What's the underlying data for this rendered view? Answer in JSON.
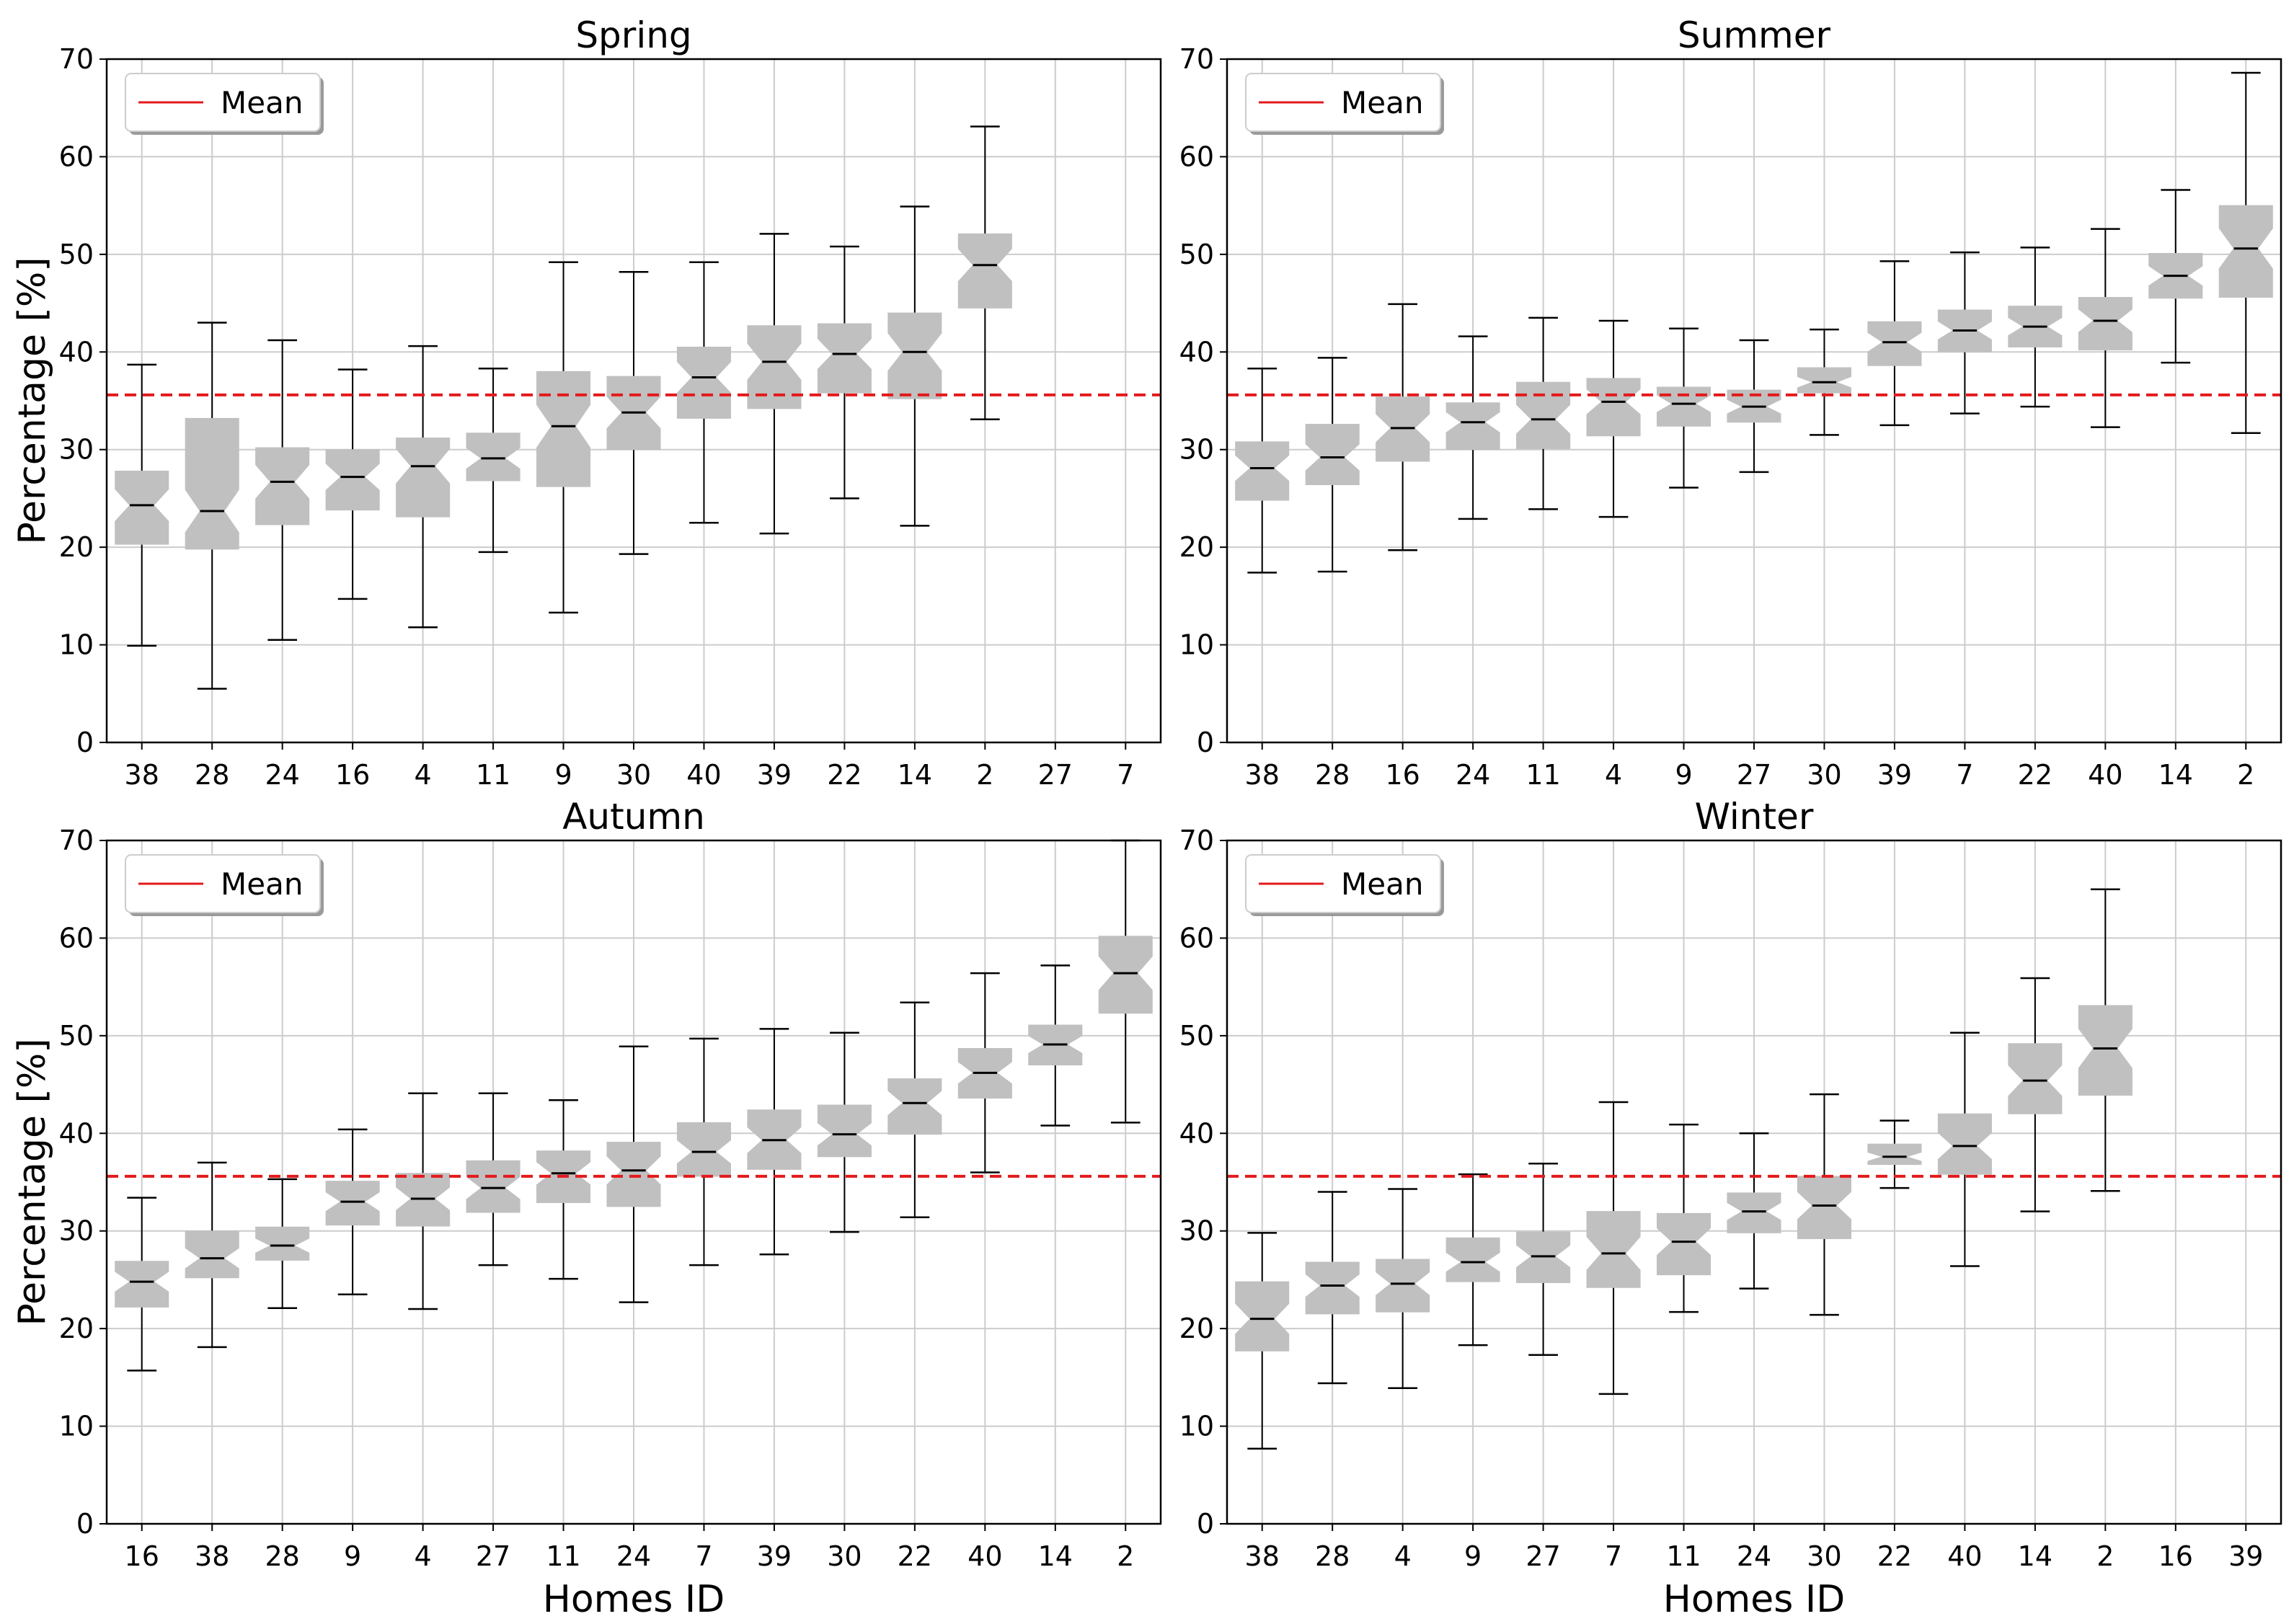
{
  "figure": {
    "mean_legend_label": "Mean",
    "ylabel": "Percentage [%]",
    "xlabel": "Homes ID",
    "colors": {
      "box": "#c0c0c0",
      "mean_line": "#e31a1c",
      "whisker": "#000000",
      "grid": "#cccccc"
    }
  },
  "chart_data": [
    {
      "type": "box",
      "title": "Spring",
      "ylim": [
        0,
        70
      ],
      "yticks": [
        0,
        10,
        20,
        30,
        40,
        50,
        60,
        70
      ],
      "mean": 35.6,
      "ylabel": "Percentage [%]",
      "xlabel": "",
      "categories": [
        "38",
        "28",
        "24",
        "16",
        "4",
        "11",
        "9",
        "30",
        "40",
        "39",
        "22",
        "14",
        "2",
        "27",
        "7"
      ],
      "boxes": [
        {
          "min": 9.9,
          "q1": 20.3,
          "median": 24.3,
          "q3": 27.8,
          "max": 38.7
        },
        {
          "min": 5.5,
          "q1": 19.8,
          "median": 23.7,
          "q3": 33.2,
          "max": 43.0
        },
        {
          "min": 10.5,
          "q1": 22.3,
          "median": 26.7,
          "q3": 30.2,
          "max": 41.2
        },
        {
          "min": 14.7,
          "q1": 23.8,
          "median": 27.2,
          "q3": 30.0,
          "max": 38.2
        },
        {
          "min": 11.8,
          "q1": 23.1,
          "median": 28.3,
          "q3": 31.2,
          "max": 40.6
        },
        {
          "min": 19.5,
          "q1": 26.8,
          "median": 29.1,
          "q3": 31.7,
          "max": 38.3
        },
        {
          "min": 13.3,
          "q1": 26.2,
          "median": 32.4,
          "q3": 38.0,
          "max": 49.2
        },
        {
          "min": 19.3,
          "q1": 30.0,
          "median": 33.8,
          "q3": 37.5,
          "max": 48.2
        },
        {
          "min": 22.5,
          "q1": 33.2,
          "median": 37.4,
          "q3": 40.5,
          "max": 49.2
        },
        {
          "min": 21.4,
          "q1": 34.2,
          "median": 39.0,
          "q3": 42.7,
          "max": 52.1
        },
        {
          "min": 25.0,
          "q1": 35.8,
          "median": 39.8,
          "q3": 42.9,
          "max": 50.8
        },
        {
          "min": 22.2,
          "q1": 35.2,
          "median": 40.0,
          "q3": 44.0,
          "max": 54.9
        },
        {
          "min": 33.1,
          "q1": 44.5,
          "median": 48.9,
          "q3": 52.1,
          "max": 63.1
        },
        null,
        null
      ]
    },
    {
      "type": "box",
      "title": "Summer",
      "ylim": [
        0,
        70
      ],
      "yticks": [
        0,
        10,
        20,
        30,
        40,
        50,
        60,
        70
      ],
      "mean": 35.6,
      "ylabel": "",
      "xlabel": "",
      "categories": [
        "38",
        "28",
        "16",
        "24",
        "11",
        "4",
        "9",
        "27",
        "30",
        "39",
        "7",
        "22",
        "40",
        "14",
        "2"
      ],
      "boxes": [
        {
          "min": 17.4,
          "q1": 24.8,
          "median": 28.1,
          "q3": 30.8,
          "max": 38.3
        },
        {
          "min": 17.5,
          "q1": 26.4,
          "median": 29.2,
          "q3": 32.6,
          "max": 39.4
        },
        {
          "min": 19.7,
          "q1": 28.8,
          "median": 32.2,
          "q3": 35.4,
          "max": 44.9
        },
        {
          "min": 22.9,
          "q1": 30.0,
          "median": 32.8,
          "q3": 34.8,
          "max": 41.6
        },
        {
          "min": 23.9,
          "q1": 30.1,
          "median": 33.1,
          "q3": 36.9,
          "max": 43.5
        },
        {
          "min": 23.1,
          "q1": 31.4,
          "median": 34.9,
          "q3": 37.3,
          "max": 43.2
        },
        {
          "min": 26.1,
          "q1": 32.4,
          "median": 34.7,
          "q3": 36.4,
          "max": 42.4
        },
        {
          "min": 27.7,
          "q1": 32.8,
          "median": 34.4,
          "q3": 36.1,
          "max": 41.2
        },
        {
          "min": 31.5,
          "q1": 35.8,
          "median": 36.9,
          "q3": 38.4,
          "max": 42.3
        },
        {
          "min": 32.5,
          "q1": 38.6,
          "median": 41.0,
          "q3": 43.1,
          "max": 49.3
        },
        {
          "min": 33.7,
          "q1": 40.0,
          "median": 42.2,
          "q3": 44.3,
          "max": 50.2
        },
        {
          "min": 34.4,
          "q1": 40.5,
          "median": 42.6,
          "q3": 44.7,
          "max": 50.7
        },
        {
          "min": 32.3,
          "q1": 40.2,
          "median": 43.2,
          "q3": 45.6,
          "max": 52.6
        },
        {
          "min": 38.9,
          "q1": 45.5,
          "median": 47.8,
          "q3": 50.1,
          "max": 56.6
        },
        {
          "min": 31.7,
          "q1": 45.6,
          "median": 50.6,
          "q3": 55.0,
          "max": 68.6
        }
      ]
    },
    {
      "type": "box",
      "title": "Autumn",
      "ylim": [
        0,
        70
      ],
      "yticks": [
        0,
        10,
        20,
        30,
        40,
        50,
        60,
        70
      ],
      "mean": 35.6,
      "ylabel": "Percentage [%]",
      "xlabel": "Homes ID",
      "categories": [
        "16",
        "38",
        "28",
        "9",
        "4",
        "27",
        "11",
        "24",
        "7",
        "39",
        "30",
        "22",
        "40",
        "14",
        "2"
      ],
      "boxes": [
        {
          "min": 15.7,
          "q1": 22.2,
          "median": 24.8,
          "q3": 26.9,
          "max": 33.4
        },
        {
          "min": 18.1,
          "q1": 25.2,
          "median": 27.2,
          "q3": 30.0,
          "max": 37.0
        },
        {
          "min": 22.1,
          "q1": 27.0,
          "median": 28.5,
          "q3": 30.4,
          "max": 35.3
        },
        {
          "min": 23.5,
          "q1": 30.6,
          "median": 33.0,
          "q3": 35.1,
          "max": 40.4
        },
        {
          "min": 22.0,
          "q1": 30.5,
          "median": 33.3,
          "q3": 35.9,
          "max": 44.1
        },
        {
          "min": 26.5,
          "q1": 31.9,
          "median": 34.4,
          "q3": 37.2,
          "max": 44.1
        },
        {
          "min": 25.1,
          "q1": 32.9,
          "median": 35.9,
          "q3": 38.2,
          "max": 43.4
        },
        {
          "min": 22.7,
          "q1": 32.5,
          "median": 36.2,
          "q3": 39.1,
          "max": 48.9
        },
        {
          "min": 26.5,
          "q1": 35.6,
          "median": 38.1,
          "q3": 41.1,
          "max": 49.7
        },
        {
          "min": 27.6,
          "q1": 36.3,
          "median": 39.3,
          "q3": 42.4,
          "max": 50.7
        },
        {
          "min": 29.9,
          "q1": 37.6,
          "median": 39.9,
          "q3": 42.9,
          "max": 50.3
        },
        {
          "min": 31.4,
          "q1": 39.9,
          "median": 43.1,
          "q3": 45.6,
          "max": 53.4
        },
        {
          "min": 36.0,
          "q1": 43.6,
          "median": 46.2,
          "q3": 48.7,
          "max": 56.4
        },
        {
          "min": 40.8,
          "q1": 47.0,
          "median": 49.1,
          "q3": 51.1,
          "max": 57.2
        },
        {
          "min": 41.1,
          "q1": 52.3,
          "median": 56.4,
          "q3": 60.2,
          "max": 70.0
        }
      ]
    },
    {
      "type": "box",
      "title": "Winter",
      "ylim": [
        0,
        70
      ],
      "yticks": [
        0,
        10,
        20,
        30,
        40,
        50,
        60,
        70
      ],
      "mean": 35.6,
      "ylabel": "",
      "xlabel": "Homes ID",
      "categories": [
        "38",
        "28",
        "4",
        "9",
        "27",
        "7",
        "11",
        "24",
        "30",
        "22",
        "40",
        "14",
        "2",
        "16",
        "39"
      ],
      "boxes": [
        {
          "min": 7.7,
          "q1": 17.7,
          "median": 21.0,
          "q3": 24.8,
          "max": 29.8
        },
        {
          "min": 14.4,
          "q1": 21.5,
          "median": 24.4,
          "q3": 26.8,
          "max": 34.0
        },
        {
          "min": 13.9,
          "q1": 21.7,
          "median": 24.6,
          "q3": 27.1,
          "max": 34.3
        },
        {
          "min": 18.3,
          "q1": 24.8,
          "median": 26.8,
          "q3": 29.3,
          "max": 35.8
        },
        {
          "min": 17.3,
          "q1": 24.7,
          "median": 27.4,
          "q3": 29.9,
          "max": 36.9
        },
        {
          "min": 13.3,
          "q1": 24.2,
          "median": 27.7,
          "q3": 32.0,
          "max": 43.2
        },
        {
          "min": 21.7,
          "q1": 25.5,
          "median": 28.9,
          "q3": 31.8,
          "max": 40.9
        },
        {
          "min": 24.1,
          "q1": 29.8,
          "median": 32.0,
          "q3": 33.9,
          "max": 40.0
        },
        {
          "min": 21.4,
          "q1": 29.2,
          "median": 32.6,
          "q3": 35.6,
          "max": 44.0
        },
        {
          "min": 34.4,
          "q1": 36.8,
          "median": 37.6,
          "q3": 38.9,
          "max": 41.3
        },
        {
          "min": 26.4,
          "q1": 35.8,
          "median": 38.7,
          "q3": 42.0,
          "max": 50.3
        },
        {
          "min": 32.0,
          "q1": 42.0,
          "median": 45.4,
          "q3": 49.2,
          "max": 55.9
        },
        {
          "min": 34.1,
          "q1": 43.9,
          "median": 48.7,
          "q3": 53.1,
          "max": 65.0
        },
        null,
        null
      ]
    }
  ]
}
